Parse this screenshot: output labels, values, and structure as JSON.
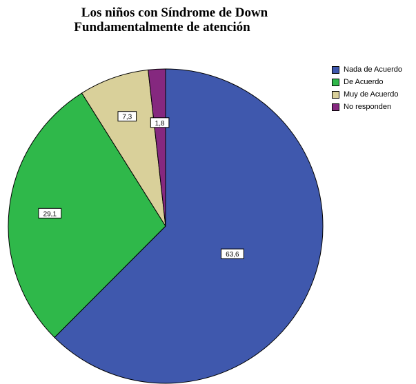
{
  "title_line1": "Los niños con Síndrome de Down",
  "title_line2": "Fundamentalmente de atención",
  "chart_data": {
    "type": "pie",
    "title": "Los niños con Síndrome de Down Fundamentalmente de atención",
    "labels": [
      "Nada de Acuerdo",
      "De Acuerdo",
      "Muy de Acuerdo",
      "No responden"
    ],
    "values": [
      63.6,
      29.1,
      7.3,
      1.8
    ],
    "value_labels": [
      "63,6",
      "29,1",
      "7,3",
      "1,8"
    ],
    "colors": [
      "#3f58ad",
      "#2fb84a",
      "#d9d09a",
      "#85287f"
    ],
    "start": "12 o'clock",
    "direction": "clockwise",
    "legend_position": "top-right"
  }
}
